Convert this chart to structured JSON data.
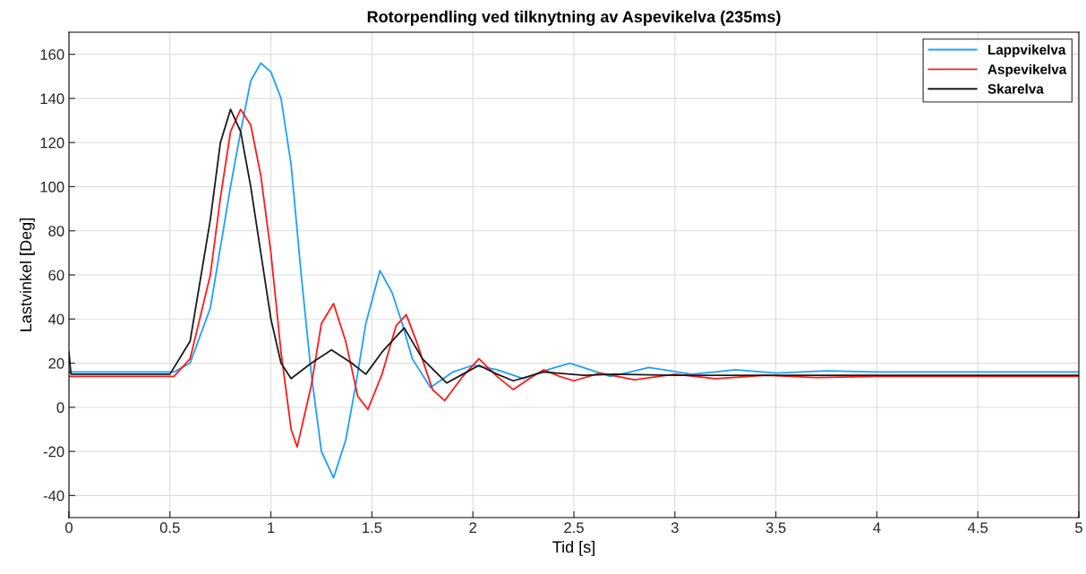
{
  "chart_data": {
    "type": "line",
    "title": "Rotorpendling ved tilknytning av Aspevikelva (235ms)",
    "xlabel": "Tid [s]",
    "ylabel": "Lastvinkel [Deg]",
    "xlim": [
      0,
      5
    ],
    "xticks": [
      0,
      0.5,
      1,
      1.5,
      2,
      2.5,
      3,
      3.5,
      4,
      4.5,
      5
    ],
    "ylim": [
      -50,
      170
    ],
    "yticks": [
      -40,
      -20,
      0,
      20,
      40,
      60,
      80,
      100,
      120,
      140,
      160
    ],
    "grid": true,
    "legend": "top right",
    "line_style": "solid",
    "marker": "none",
    "series": [
      {
        "name": "Lappvikelva",
        "color": "#1e9fff",
        "x": [
          0,
          0.52,
          0.6,
          0.7,
          0.8,
          0.85,
          0.9,
          0.95,
          1.0,
          1.05,
          1.1,
          1.15,
          1.2,
          1.25,
          1.31,
          1.37,
          1.42,
          1.47,
          1.54,
          1.6,
          1.65,
          1.7,
          1.79,
          1.9,
          2.0,
          2.12,
          2.25,
          2.37,
          2.48,
          2.58,
          2.68,
          2.78,
          2.87,
          2.98,
          3.08,
          3.2,
          3.3,
          3.5,
          3.75,
          4.0,
          4.5,
          5.0
        ],
        "values": [
          16,
          16,
          20,
          45,
          100,
          125,
          148,
          156,
          152,
          140,
          110,
          60,
          15,
          -20,
          -32,
          -15,
          10,
          38,
          62,
          52,
          38,
          22,
          9,
          16,
          19,
          17,
          13,
          17,
          20,
          17,
          14,
          16,
          18,
          16.5,
          15,
          16,
          17,
          15.5,
          16.5,
          16,
          16,
          16
        ]
      },
      {
        "name": "Aspevikelva",
        "color": "#ff1a1a",
        "x": [
          0,
          0.52,
          0.6,
          0.7,
          0.75,
          0.8,
          0.85,
          0.9,
          0.95,
          1.0,
          1.05,
          1.1,
          1.13,
          1.2,
          1.25,
          1.31,
          1.37,
          1.43,
          1.48,
          1.55,
          1.62,
          1.67,
          1.72,
          1.8,
          1.86,
          1.95,
          2.03,
          2.12,
          2.2,
          2.28,
          2.35,
          2.43,
          2.5,
          2.63,
          2.8,
          3.0,
          3.2,
          3.45,
          3.7,
          4.0,
          4.5,
          5.0
        ],
        "values": [
          14,
          14,
          22,
          60,
          95,
          125,
          135,
          128,
          105,
          70,
          25,
          -10,
          -18,
          10,
          38,
          47,
          30,
          5,
          -1,
          15,
          37,
          42,
          30,
          8,
          3,
          14,
          22,
          14,
          8,
          13,
          17,
          14,
          12,
          15.5,
          12.5,
          15,
          13,
          14.5,
          13.5,
          14,
          14,
          14
        ]
      },
      {
        "name": "Skarelva",
        "color": "#1a1a1a",
        "x": [
          0,
          0.01,
          0.5,
          0.6,
          0.7,
          0.75,
          0.8,
          0.85,
          0.9,
          0.95,
          1.0,
          1.05,
          1.1,
          1.2,
          1.3,
          1.4,
          1.47,
          1.55,
          1.66,
          1.75,
          1.87,
          1.95,
          2.03,
          2.12,
          2.2,
          2.35,
          2.55,
          2.7,
          3.0,
          3.5,
          4.0,
          5.0
        ],
        "values": [
          25,
          15,
          15,
          30,
          85,
          120,
          135,
          125,
          100,
          70,
          40,
          20,
          13,
          20,
          26,
          20,
          15,
          25,
          36,
          22,
          11,
          15,
          19,
          15,
          12,
          16,
          14.5,
          15,
          14.5,
          14.5,
          14.5,
          14.5
        ]
      }
    ]
  }
}
